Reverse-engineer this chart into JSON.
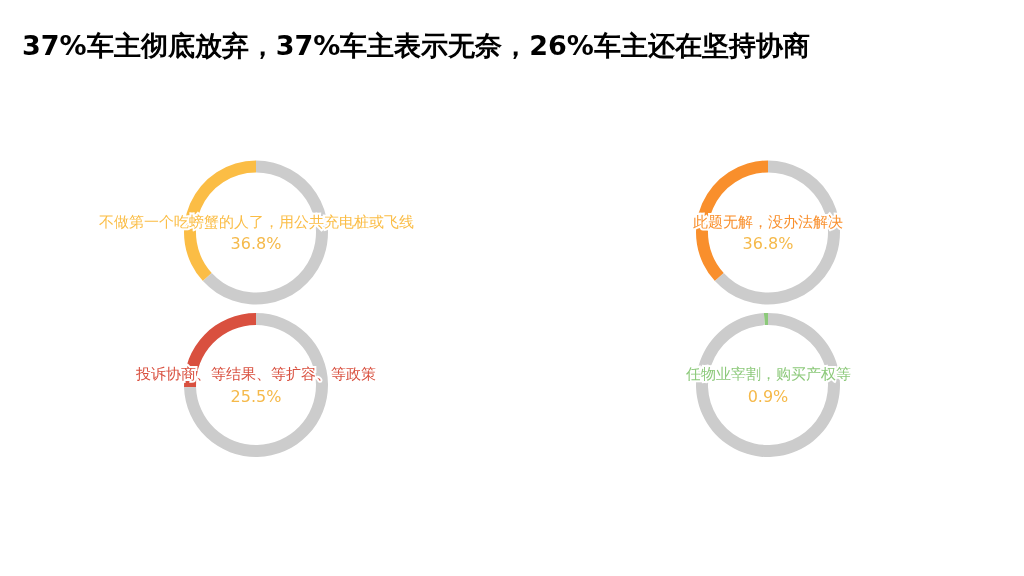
{
  "chart_data": [
    {
      "type": "donut",
      "title": "37%车主彻底放弃，37%车主表示无奈，26%车主还在坚持协商",
      "categories": [
        "不做第一个吃螃蟹的人了，用公共充电桩或飞线",
        null
      ],
      "values": [
        36.8,
        63.2
      ],
      "colors": [
        "#fbbd45",
        "#cccccc"
      ],
      "value_labels": [
        "36.8%",
        null
      ],
      "legend": false
    },
    {
      "type": "donut",
      "categories": [
        "此题无解，没办法解决",
        null
      ],
      "values": [
        36.8,
        63.2
      ],
      "colors": [
        "#f98f2c",
        "#cccccc"
      ],
      "value_labels": [
        "36.8%",
        null
      ],
      "legend": false
    },
    {
      "type": "donut",
      "categories": [
        "投诉协商、等结果、等扩容、等政策",
        null
      ],
      "values": [
        25.5,
        74.5
      ],
      "colors": [
        "#d9503f",
        "#cccccc"
      ],
      "value_labels": [
        "25.5%",
        null
      ],
      "legend": false
    },
    {
      "type": "donut",
      "categories": [
        "任物业宰割，购买产权等",
        null
      ],
      "values": [
        0.9,
        99.1
      ],
      "colors": [
        "#8cc97a",
        "#cccccc"
      ],
      "value_labels": [
        "0.9%",
        null
      ],
      "legend": false
    }
  ]
}
